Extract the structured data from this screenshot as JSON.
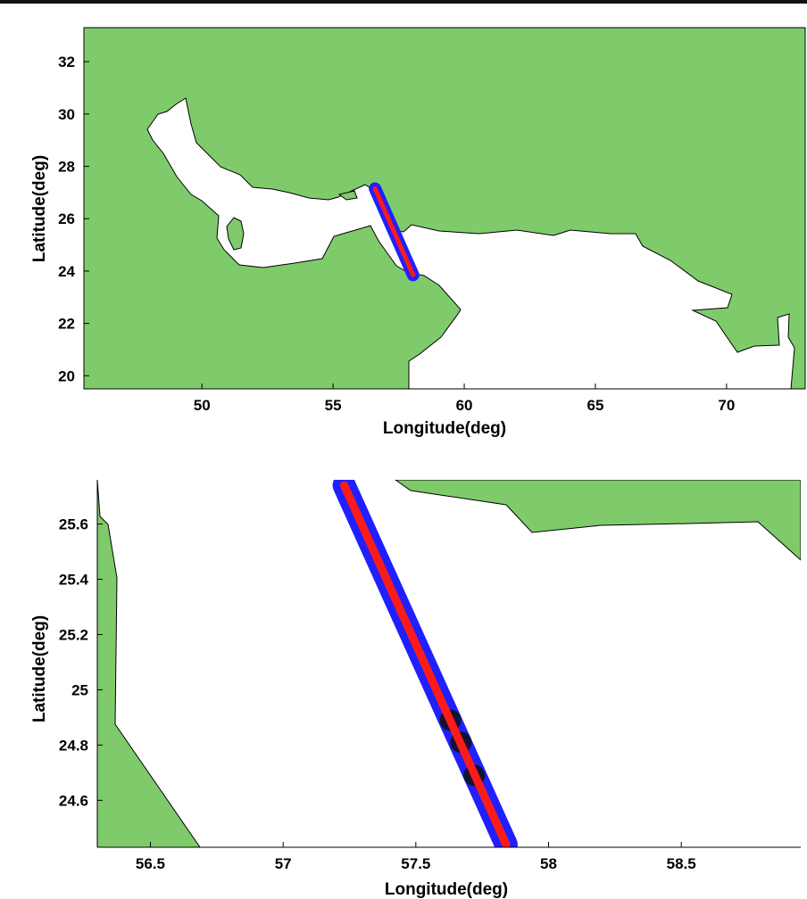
{
  "chart_data": [
    {
      "type": "map",
      "xlabel": "Longitude(deg)",
      "ylabel": "Latitude(deg)",
      "xlim": [
        45.5,
        73.0
      ],
      "ylim": [
        19.5,
        33.3
      ],
      "xticks": [
        50,
        55,
        60,
        65,
        70
      ],
      "yticks": [
        20,
        22,
        24,
        26,
        28,
        30,
        32
      ],
      "land_color": "#7fcb6b",
      "track_outline_color": "#2020ff",
      "track_color": "#ff1a1a",
      "track": [
        [
          56.6,
          27.15
        ],
        [
          58.05,
          23.85
        ]
      ]
    },
    {
      "type": "map",
      "xlabel": "Longitude(deg)",
      "ylabel": "Latitude(deg)",
      "xlim": [
        56.3,
        58.95
      ],
      "ylim": [
        24.43,
        25.76
      ],
      "xticks": [
        56.5,
        57,
        57.5,
        58,
        58.5
      ],
      "yticks": [
        24.6,
        24.8,
        25,
        25.2,
        25.4,
        25.6
      ],
      "land_color": "#7fcb6b",
      "track_outline_color": "#2020ff",
      "track_color": "#ff1a1a",
      "marker_color": "#111111",
      "track": [
        [
          57.23,
          25.74
        ],
        [
          57.84,
          24.44
        ]
      ],
      "markers": [
        [
          57.63,
          24.89
        ],
        [
          57.67,
          24.81
        ],
        [
          57.72,
          24.69
        ]
      ]
    }
  ]
}
